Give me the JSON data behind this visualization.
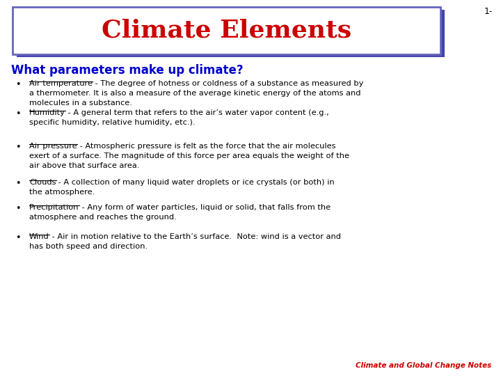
{
  "title": "Climate Elements",
  "slide_number": "1-",
  "subtitle": "What parameters make up climate?",
  "background_color": "#ffffff",
  "title_color": "#cc0000",
  "title_box_border_color": "#6666bb",
  "title_box_shadow_color": "#4444aa",
  "subtitle_color": "#0000cc",
  "body_text_color": "#000000",
  "footer_color": "#cc0000",
  "footer_text": "Climate and Global Change Notes",
  "bullet_items": [
    {
      "term": "Air temperature",
      "definition": " - The degree of hotness or coldness of a substance as measured by a thermometer. It is also a measure of the average kinetic energy of the atoms and molecules in a substance."
    },
    {
      "term": "Humidity",
      "definition": " - A general term that refers to the air’s water vapor content (e.g., specific humidity, relative humidity, etc.)."
    },
    {
      "term": "Air pressure",
      "definition": " - Atmospheric pressure is felt as the force that the air molecules exert of a surface. The magnitude of this force per area equals the weight of the air above that surface area."
    },
    {
      "term": "Clouds",
      "definition": " - A collection of many liquid water droplets or ice crystals (or both) in the atmosphere."
    },
    {
      "term": "Precipitation",
      "definition": " - Any form of water particles, liquid or solid, that falls from the atmosphere and reaches the ground."
    },
    {
      "term": "Wind",
      "definition": " - Air in motion relative to the Earth’s surface.  Note: wind is a vector and has both speed and direction."
    }
  ]
}
